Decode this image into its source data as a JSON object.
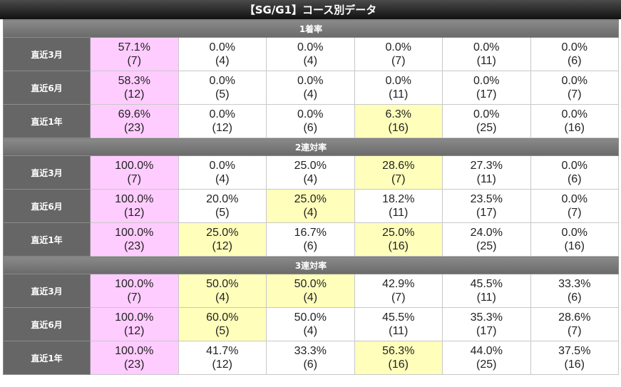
{
  "title": "【SG/G1】コース別データ",
  "colors": {
    "highlight_pink": "#ffccff",
    "highlight_yellow": "#ffffbb",
    "label_bg": "#666666"
  },
  "sections": [
    {
      "title": "1着率",
      "rows": [
        {
          "label": "直近3月",
          "cells": [
            {
              "pct": "57.1%",
              "n": "(7)",
              "hl": "pink"
            },
            {
              "pct": "0.0%",
              "n": "(4)",
              "hl": ""
            },
            {
              "pct": "0.0%",
              "n": "(4)",
              "hl": ""
            },
            {
              "pct": "0.0%",
              "n": "(7)",
              "hl": ""
            },
            {
              "pct": "0.0%",
              "n": "(11)",
              "hl": ""
            },
            {
              "pct": "0.0%",
              "n": "(6)",
              "hl": ""
            }
          ]
        },
        {
          "label": "直近6月",
          "cells": [
            {
              "pct": "58.3%",
              "n": "(12)",
              "hl": "pink"
            },
            {
              "pct": "0.0%",
              "n": "(5)",
              "hl": ""
            },
            {
              "pct": "0.0%",
              "n": "(4)",
              "hl": ""
            },
            {
              "pct": "0.0%",
              "n": "(11)",
              "hl": ""
            },
            {
              "pct": "0.0%",
              "n": "(17)",
              "hl": ""
            },
            {
              "pct": "0.0%",
              "n": "(7)",
              "hl": ""
            }
          ]
        },
        {
          "label": "直近1年",
          "cells": [
            {
              "pct": "69.6%",
              "n": "(23)",
              "hl": "pink"
            },
            {
              "pct": "0.0%",
              "n": "(12)",
              "hl": ""
            },
            {
              "pct": "0.0%",
              "n": "(6)",
              "hl": ""
            },
            {
              "pct": "6.3%",
              "n": "(16)",
              "hl": "yellow"
            },
            {
              "pct": "0.0%",
              "n": "(25)",
              "hl": ""
            },
            {
              "pct": "0.0%",
              "n": "(16)",
              "hl": ""
            }
          ]
        }
      ]
    },
    {
      "title": "2連対率",
      "rows": [
        {
          "label": "直近3月",
          "cells": [
            {
              "pct": "100.0%",
              "n": "(7)",
              "hl": "pink"
            },
            {
              "pct": "0.0%",
              "n": "(4)",
              "hl": ""
            },
            {
              "pct": "25.0%",
              "n": "(4)",
              "hl": ""
            },
            {
              "pct": "28.6%",
              "n": "(7)",
              "hl": "yellow"
            },
            {
              "pct": "27.3%",
              "n": "(11)",
              "hl": ""
            },
            {
              "pct": "0.0%",
              "n": "(6)",
              "hl": ""
            }
          ]
        },
        {
          "label": "直近6月",
          "cells": [
            {
              "pct": "100.0%",
              "n": "(12)",
              "hl": "pink"
            },
            {
              "pct": "20.0%",
              "n": "(5)",
              "hl": ""
            },
            {
              "pct": "25.0%",
              "n": "(4)",
              "hl": "yellow"
            },
            {
              "pct": "18.2%",
              "n": "(11)",
              "hl": ""
            },
            {
              "pct": "23.5%",
              "n": "(17)",
              "hl": ""
            },
            {
              "pct": "0.0%",
              "n": "(7)",
              "hl": ""
            }
          ]
        },
        {
          "label": "直近1年",
          "cells": [
            {
              "pct": "100.0%",
              "n": "(23)",
              "hl": "pink"
            },
            {
              "pct": "25.0%",
              "n": "(12)",
              "hl": "yellow"
            },
            {
              "pct": "16.7%",
              "n": "(6)",
              "hl": ""
            },
            {
              "pct": "25.0%",
              "n": "(16)",
              "hl": "yellow"
            },
            {
              "pct": "24.0%",
              "n": "(25)",
              "hl": ""
            },
            {
              "pct": "0.0%",
              "n": "(16)",
              "hl": ""
            }
          ]
        }
      ]
    },
    {
      "title": "3連対率",
      "rows": [
        {
          "label": "直近3月",
          "cells": [
            {
              "pct": "100.0%",
              "n": "(7)",
              "hl": "pink"
            },
            {
              "pct": "50.0%",
              "n": "(4)",
              "hl": "yellow"
            },
            {
              "pct": "50.0%",
              "n": "(4)",
              "hl": "yellow"
            },
            {
              "pct": "42.9%",
              "n": "(7)",
              "hl": ""
            },
            {
              "pct": "45.5%",
              "n": "(11)",
              "hl": ""
            },
            {
              "pct": "33.3%",
              "n": "(6)",
              "hl": ""
            }
          ]
        },
        {
          "label": "直近6月",
          "cells": [
            {
              "pct": "100.0%",
              "n": "(12)",
              "hl": "pink"
            },
            {
              "pct": "60.0%",
              "n": "(5)",
              "hl": "yellow"
            },
            {
              "pct": "50.0%",
              "n": "(4)",
              "hl": ""
            },
            {
              "pct": "45.5%",
              "n": "(11)",
              "hl": ""
            },
            {
              "pct": "35.3%",
              "n": "(17)",
              "hl": ""
            },
            {
              "pct": "28.6%",
              "n": "(7)",
              "hl": ""
            }
          ]
        },
        {
          "label": "直近1年",
          "cells": [
            {
              "pct": "100.0%",
              "n": "(23)",
              "hl": "pink"
            },
            {
              "pct": "41.7%",
              "n": "(12)",
              "hl": ""
            },
            {
              "pct": "33.3%",
              "n": "(6)",
              "hl": ""
            },
            {
              "pct": "56.3%",
              "n": "(16)",
              "hl": "yellow"
            },
            {
              "pct": "44.0%",
              "n": "(25)",
              "hl": ""
            },
            {
              "pct": "37.5%",
              "n": "(16)",
              "hl": ""
            }
          ]
        }
      ]
    }
  ]
}
